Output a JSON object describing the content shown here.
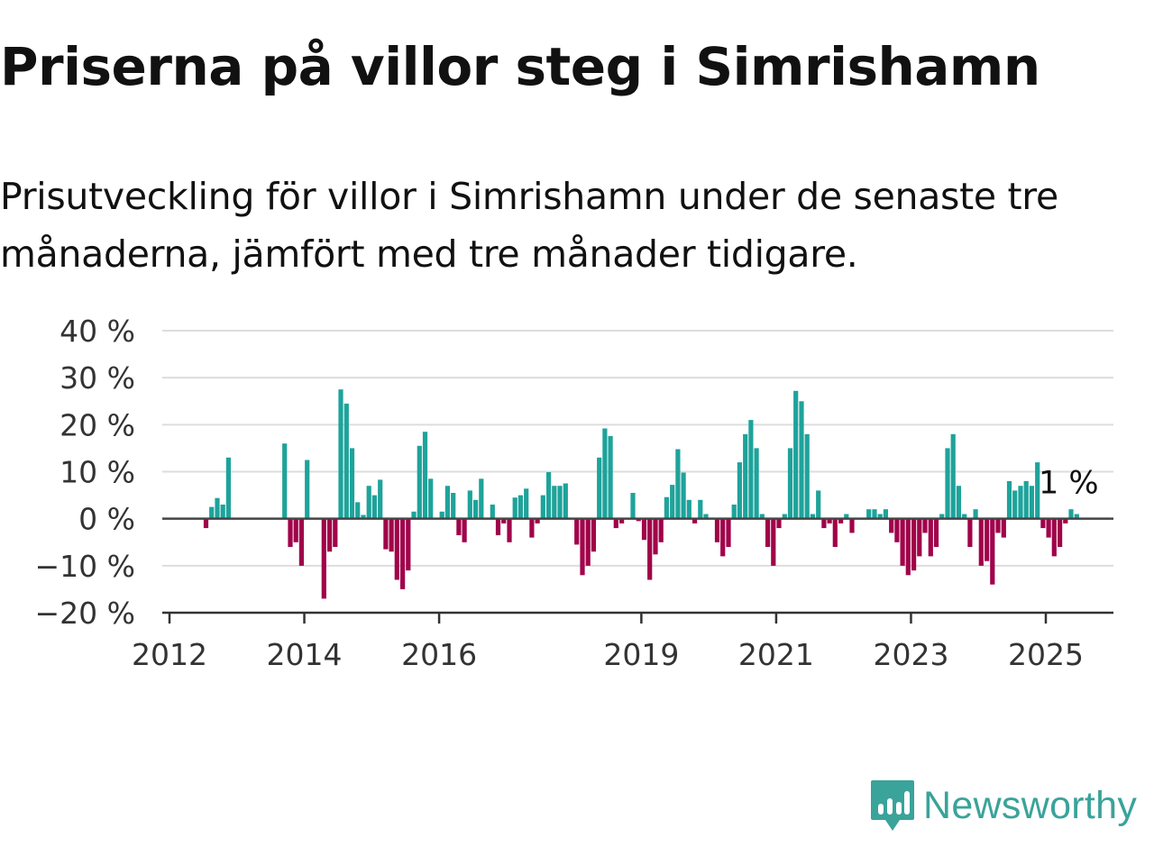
{
  "title": "Priserna på villor steg i Simrishamn",
  "subtitle": "Prisutveckling för villor i Simrishamn under de senaste tre månaderna, jämfört med tre månader tidigare.",
  "brand": {
    "name": "Newsworthy",
    "color": "#3aa39a",
    "icon": "newsworthy-logo-icon"
  },
  "colors": {
    "positive": "#1ea39b",
    "negative": "#a0034a",
    "grid": "#dddddd",
    "axis": "#333333"
  },
  "chart_data": {
    "type": "bar",
    "title": "Priserna på villor steg i Simrishamn",
    "xlabel": "",
    "ylabel": "",
    "ylim": [
      -20,
      40
    ],
    "y_ticks": [
      40,
      30,
      20,
      10,
      0,
      -10,
      -20
    ],
    "y_tick_labels": [
      "40 %",
      "30 %",
      "20 %",
      "10 %",
      "0 %",
      "−10 %",
      "−20 %"
    ],
    "x_ticks": [
      2012,
      2014,
      2016,
      2019,
      2021,
      2023,
      2025
    ],
    "x_tick_labels": [
      "2012",
      "2014",
      "2016",
      "2019",
      "2021",
      "2023",
      "2025"
    ],
    "x_range": [
      "2012-01",
      "2025-09"
    ],
    "grid": true,
    "annotation": {
      "text": "1 %",
      "x": "2025-05",
      "value": 1
    },
    "series": [
      {
        "values": [
          [
            "2012-07",
            -2
          ],
          [
            "2012-08",
            2.5
          ],
          [
            "2012-09",
            4.4
          ],
          [
            "2012-10",
            3
          ],
          [
            "2012-11",
            13
          ],
          [
            "2013-09",
            16
          ],
          [
            "2013-10",
            -6
          ],
          [
            "2013-11",
            -5
          ],
          [
            "2013-12",
            -10
          ],
          [
            "2014-01",
            12.5
          ],
          [
            "2014-02",
            0
          ],
          [
            "2014-03",
            0
          ],
          [
            "2014-04",
            -17
          ],
          [
            "2014-05",
            -7
          ],
          [
            "2014-06",
            -6
          ],
          [
            "2014-07",
            27.5
          ],
          [
            "2014-08",
            24.5
          ],
          [
            "2014-09",
            15
          ],
          [
            "2014-10",
            3.5
          ],
          [
            "2014-11",
            0.8
          ],
          [
            "2014-12",
            7
          ],
          [
            "2015-01",
            5
          ],
          [
            "2015-02",
            8.3
          ],
          [
            "2015-03",
            -6.5
          ],
          [
            "2015-04",
            -7
          ],
          [
            "2015-05",
            -13
          ],
          [
            "2015-06",
            -15
          ],
          [
            "2015-07",
            -11
          ],
          [
            "2015-08",
            1.5
          ],
          [
            "2015-09",
            15.5
          ],
          [
            "2015-10",
            18.5
          ],
          [
            "2015-11",
            8.5
          ],
          [
            "2015-12",
            0
          ],
          [
            "2016-01",
            1.5
          ],
          [
            "2016-02",
            7
          ],
          [
            "2016-03",
            5.5
          ],
          [
            "2016-04",
            -3.5
          ],
          [
            "2016-05",
            -5
          ],
          [
            "2016-06",
            6
          ],
          [
            "2016-07",
            4
          ],
          [
            "2016-08",
            8.5
          ],
          [
            "2016-09",
            0
          ],
          [
            "2016-10",
            3
          ],
          [
            "2016-11",
            -3.5
          ],
          [
            "2016-12",
            -1
          ],
          [
            "2017-01",
            -5
          ],
          [
            "2017-02",
            4.5
          ],
          [
            "2017-03",
            5
          ],
          [
            "2017-04",
            6.4
          ],
          [
            "2017-05",
            -4
          ],
          [
            "2017-06",
            -1
          ],
          [
            "2017-07",
            5
          ],
          [
            "2017-08",
            9.9
          ],
          [
            "2017-09",
            7
          ],
          [
            "2017-10",
            7
          ],
          [
            "2017-11",
            7.5
          ],
          [
            "2017-12",
            0
          ],
          [
            "2018-01",
            -5.5
          ],
          [
            "2018-02",
            -12
          ],
          [
            "2018-03",
            -10
          ],
          [
            "2018-04",
            -7
          ],
          [
            "2018-05",
            13
          ],
          [
            "2018-06",
            19.2
          ],
          [
            "2018-07",
            17.6
          ],
          [
            "2018-08",
            -2
          ],
          [
            "2018-09",
            -1
          ],
          [
            "2018-10",
            0
          ],
          [
            "2018-11",
            5.5
          ],
          [
            "2018-12",
            -0.5
          ],
          [
            "2019-01",
            -4.5
          ],
          [
            "2019-02",
            -13
          ],
          [
            "2019-03",
            -7.6
          ],
          [
            "2019-04",
            -5
          ],
          [
            "2019-05",
            4.6
          ],
          [
            "2019-06",
            7.2
          ],
          [
            "2019-07",
            14.8
          ],
          [
            "2019-08",
            9.8
          ],
          [
            "2019-09",
            4
          ],
          [
            "2019-10",
            -1
          ],
          [
            "2019-11",
            4
          ],
          [
            "2019-12",
            1
          ],
          [
            "2020-01",
            0
          ],
          [
            "2020-02",
            -5
          ],
          [
            "2020-03",
            -8
          ],
          [
            "2020-04",
            -6
          ],
          [
            "2020-05",
            3
          ],
          [
            "2020-06",
            12
          ],
          [
            "2020-07",
            18
          ],
          [
            "2020-08",
            21
          ],
          [
            "2020-09",
            15
          ],
          [
            "2020-10",
            1
          ],
          [
            "2020-11",
            -6
          ],
          [
            "2020-12",
            -10
          ],
          [
            "2021-01",
            -2
          ],
          [
            "2021-02",
            1
          ],
          [
            "2021-03",
            15
          ],
          [
            "2021-04",
            27.2
          ],
          [
            "2021-05",
            25
          ],
          [
            "2021-06",
            18
          ],
          [
            "2021-07",
            1
          ],
          [
            "2021-08",
            6
          ],
          [
            "2021-09",
            -2
          ],
          [
            "2021-10",
            -1
          ],
          [
            "2021-11",
            -6
          ],
          [
            "2021-12",
            -1
          ],
          [
            "2022-01",
            1
          ],
          [
            "2022-02",
            -3
          ],
          [
            "2022-05",
            2
          ],
          [
            "2022-06",
            2
          ],
          [
            "2022-07",
            1
          ],
          [
            "2022-08",
            2
          ],
          [
            "2022-09",
            -3
          ],
          [
            "2022-10",
            -5
          ],
          [
            "2022-11",
            -10
          ],
          [
            "2022-12",
            -12
          ],
          [
            "2023-01",
            -11
          ],
          [
            "2023-02",
            -8
          ],
          [
            "2023-03",
            -3
          ],
          [
            "2023-04",
            -8
          ],
          [
            "2023-05",
            -6
          ],
          [
            "2023-06",
            1
          ],
          [
            "2023-07",
            15
          ],
          [
            "2023-08",
            18
          ],
          [
            "2023-09",
            7
          ],
          [
            "2023-10",
            1
          ],
          [
            "2023-11",
            -6
          ],
          [
            "2023-12",
            2
          ],
          [
            "2024-01",
            -10
          ],
          [
            "2024-02",
            -9
          ],
          [
            "2024-03",
            -14
          ],
          [
            "2024-04",
            -3
          ],
          [
            "2024-05",
            -4
          ],
          [
            "2024-06",
            8
          ],
          [
            "2024-07",
            6
          ],
          [
            "2024-08",
            7
          ],
          [
            "2024-09",
            8
          ],
          [
            "2024-10",
            7
          ],
          [
            "2024-11",
            12
          ],
          [
            "2024-12",
            -2
          ],
          [
            "2025-01",
            -4
          ],
          [
            "2025-02",
            -8
          ],
          [
            "2025-03",
            -6
          ],
          [
            "2025-04",
            -1
          ],
          [
            "2025-05",
            2
          ],
          [
            "2025-06",
            1
          ]
        ]
      }
    ]
  }
}
